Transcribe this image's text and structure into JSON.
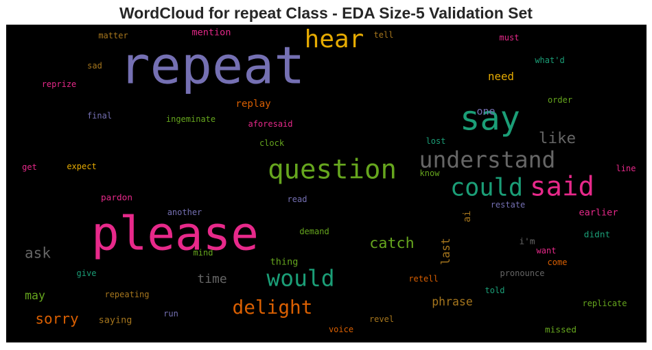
{
  "chart_data": {
    "type": "wordcloud",
    "title": "WordCloud for repeat Class - EDA Size-5 Validation Set",
    "background": "#000000",
    "words": [
      {
        "text": "repeat",
        "weight": 100,
        "color": "#7570b3"
      },
      {
        "text": "please",
        "weight": 90,
        "color": "#e7298a"
      },
      {
        "text": "say",
        "weight": 65,
        "color": "#1b9e77"
      },
      {
        "text": "question",
        "weight": 52,
        "color": "#66a61e"
      },
      {
        "text": "said",
        "weight": 52,
        "color": "#e7298a"
      },
      {
        "text": "hear",
        "weight": 48,
        "color": "#e6ab02"
      },
      {
        "text": "could",
        "weight": 47,
        "color": "#1b9e77"
      },
      {
        "text": "understand",
        "weight": 44,
        "color": "#666666"
      },
      {
        "text": "would",
        "weight": 44,
        "color": "#1b9e77"
      },
      {
        "text": "delight",
        "weight": 37,
        "color": "#d95f02"
      },
      {
        "text": "like",
        "weight": 30,
        "color": "#666666"
      },
      {
        "text": "catch",
        "weight": 29,
        "color": "#66a61e"
      },
      {
        "text": "sorry",
        "weight": 28,
        "color": "#d95f02"
      },
      {
        "text": "ask",
        "weight": 28,
        "color": "#666666"
      },
      {
        "text": "time",
        "weight": 24,
        "color": "#666666"
      },
      {
        "text": "last",
        "weight": 22,
        "color": "#a6761d"
      },
      {
        "text": "phrase",
        "weight": 22,
        "color": "#a6761d"
      },
      {
        "text": "may",
        "weight": 22,
        "color": "#66a61e"
      },
      {
        "text": "need",
        "weight": 21,
        "color": "#e6ab02"
      },
      {
        "text": "one",
        "weight": 20,
        "color": "#7570b3"
      },
      {
        "text": "replay",
        "weight": 19,
        "color": "#d95f02"
      },
      {
        "text": "ai",
        "weight": 19,
        "color": "#a6761d"
      },
      {
        "text": "mention",
        "weight": 18,
        "color": "#e7298a"
      },
      {
        "text": "thing",
        "weight": 18,
        "color": "#66a61e"
      },
      {
        "text": "saying",
        "weight": 18,
        "color": "#a6761d"
      },
      {
        "text": "earlier",
        "weight": 18,
        "color": "#e7298a"
      },
      {
        "text": "pardon",
        "weight": 17,
        "color": "#e7298a"
      },
      {
        "text": "didnt",
        "weight": 17,
        "color": "#1b9e77"
      },
      {
        "text": "i'm",
        "weight": 17,
        "color": "#666666"
      },
      {
        "text": "missed",
        "weight": 17,
        "color": "#66a61e"
      },
      {
        "text": "restate",
        "weight": 16,
        "color": "#7570b3"
      },
      {
        "text": "tell",
        "weight": 16,
        "color": "#a6761d"
      },
      {
        "text": "come",
        "weight": 16,
        "color": "#d95f02"
      },
      {
        "text": "run",
        "weight": 16,
        "color": "#7570b3"
      },
      {
        "text": "ingeminate",
        "weight": 13,
        "color": "#66a61e"
      },
      {
        "text": "aforesaid",
        "weight": 13,
        "color": "#e7298a"
      },
      {
        "text": "replicate",
        "weight": 13,
        "color": "#66a61e"
      },
      {
        "text": "matter",
        "weight": 13,
        "color": "#a6761d"
      },
      {
        "text": "must",
        "weight": 13,
        "color": "#e7298a"
      },
      {
        "text": "what'd",
        "weight": 13,
        "color": "#1b9e77"
      },
      {
        "text": "order",
        "weight": 13,
        "color": "#66a61e"
      },
      {
        "text": "final",
        "weight": 13,
        "color": "#7570b3"
      },
      {
        "text": "sad",
        "weight": 13,
        "color": "#a6761d"
      },
      {
        "text": "reprize",
        "weight": 13,
        "color": "#e7298a"
      },
      {
        "text": "clock",
        "weight": 13,
        "color": "#66a61e"
      },
      {
        "text": "lost",
        "weight": 13,
        "color": "#1b9e77"
      },
      {
        "text": "expect",
        "weight": 13,
        "color": "#e6ab02"
      },
      {
        "text": "get",
        "weight": 13,
        "color": "#e7298a"
      },
      {
        "text": "know",
        "weight": 12,
        "color": "#66a61e"
      },
      {
        "text": "line",
        "weight": 13,
        "color": "#e7298a"
      },
      {
        "text": "read",
        "weight": 12,
        "color": "#7570b3"
      },
      {
        "text": "another",
        "weight": 12,
        "color": "#7570b3"
      },
      {
        "text": "demand",
        "weight": 13,
        "color": "#66a61e"
      },
      {
        "text": "mind",
        "weight": 12,
        "color": "#66a61e"
      },
      {
        "text": "want",
        "weight": 12,
        "color": "#e7298a"
      },
      {
        "text": "give",
        "weight": 12,
        "color": "#1b9e77"
      },
      {
        "text": "pronounce",
        "weight": 13,
        "color": "#666666"
      },
      {
        "text": "retell",
        "weight": 13,
        "color": "#d95f02"
      },
      {
        "text": "told",
        "weight": 12,
        "color": "#1b9e77"
      },
      {
        "text": "repeating",
        "weight": 13,
        "color": "#a6761d"
      },
      {
        "text": "revel",
        "weight": 13,
        "color": "#a6761d"
      },
      {
        "text": "voice",
        "weight": 13,
        "color": "#d95f02"
      }
    ]
  }
}
